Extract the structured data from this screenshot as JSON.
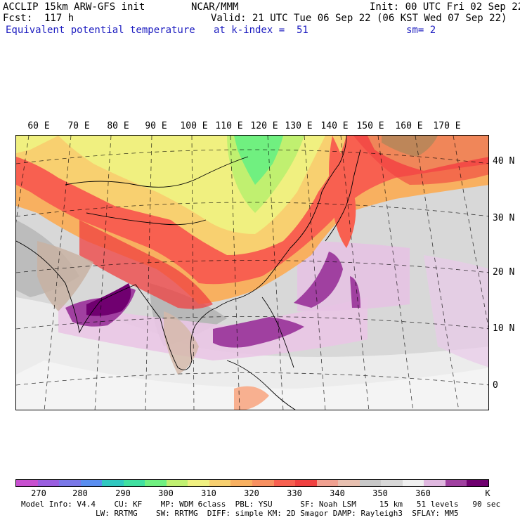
{
  "header": {
    "line1_left": "ACCLIP 15km ARW-GFS init",
    "line1_mid": "NCAR/MMM",
    "line1_right": "Init: 00 UTC Fri 02 Sep 22",
    "line2_left": "Fcst:  117 h",
    "line2_right": "Valid: 21 UTC Tue 06 Sep 22 (06 KST Wed 07 Sep 22)",
    "line3_left": "Equivalent potential temperature",
    "line3_mid": "at k-index =  51",
    "line3_right": "sm= 2"
  },
  "map": {
    "lon_labels": [
      "60 E",
      "70 E",
      "80 E",
      "90 E",
      "100 E",
      "110 E",
      "120 E",
      "130 E",
      "140 E",
      "150 E",
      "160 E",
      "170 E"
    ],
    "lat_labels": [
      "40 N",
      "30 N",
      "20 N",
      "10 N",
      "0"
    ]
  },
  "colorbar": {
    "colors": [
      "#c850d0",
      "#9a5ee0",
      "#7a78e8",
      "#5a8ef0",
      "#30c8c0",
      "#40e0a0",
      "#70f080",
      "#c0f070",
      "#f0f080",
      "#f8d070",
      "#f8b060",
      "#f89060",
      "#f86050",
      "#f04040",
      "#f0a090",
      "#e8c0b0",
      "#c8c8c8",
      "#d8d8d8",
      "#f0f0f0",
      "#e0b8e0",
      "#a040a0",
      "#700070"
    ],
    "tick_labels": [
      "270",
      "280",
      "290",
      "300",
      "310",
      "320",
      "330",
      "340",
      "350",
      "360",
      "K"
    ]
  },
  "footer": {
    "line1": "Model Info: V4.4    CU: KF    MP: WDM 6class  PBL: YSU      SF: Noah LSM     15 km   51 levels   90 sec",
    "line2": "                LW: RRTMG    SW: RRTMG  DIFF: simple KM: 2D Smagor DAMP: Rayleigh3  SFLAY: MM5"
  }
}
